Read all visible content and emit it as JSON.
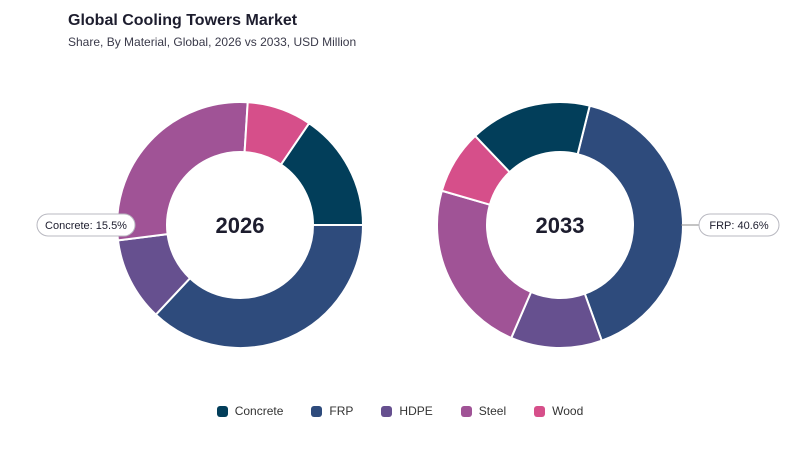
{
  "chart_data": {
    "type": "pie",
    "title": "Global Cooling Towers Market",
    "subtitle": "Share, By Material, Global, 2026 vs 2033, USD Million",
    "categories": [
      "Concrete",
      "FRP",
      "HDPE",
      "Steel",
      "Wood"
    ],
    "colors": {
      "Concrete": "#023e5a",
      "FRP": "#2e4b7c",
      "HDPE": "#66508f",
      "Steel": "#a05396",
      "Wood": "#d64f8a"
    },
    "charts": [
      {
        "center_label": "2026",
        "values": {
          "Concrete": 15.5,
          "FRP": 37.0,
          "HDPE": 11.0,
          "Steel": 28.0,
          "Wood": 8.5
        },
        "callout": {
          "label": "Concrete: 15.5%",
          "side": "left"
        }
      },
      {
        "center_label": "2033",
        "values": {
          "Concrete": 16.0,
          "FRP": 40.6,
          "HDPE": 12.0,
          "Steel": 23.0,
          "Wood": 8.4
        },
        "callout": {
          "label": "FRP: 40.6%",
          "side": "right"
        }
      }
    ],
    "legend": {
      "position": "bottom",
      "entries": [
        "Concrete",
        "FRP",
        "HDPE",
        "Steel",
        "Wood"
      ]
    }
  }
}
